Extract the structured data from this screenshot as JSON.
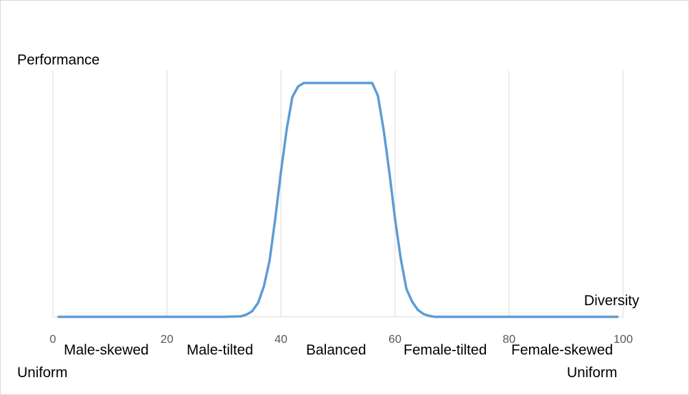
{
  "chart_data": {
    "type": "line",
    "ylabel": "Performance",
    "xlabel": "Diversity",
    "xlim": [
      0,
      100
    ],
    "ylim": [
      0,
      1
    ],
    "x_ticks": [
      "0",
      "20",
      "40",
      "60",
      "80",
      "100"
    ],
    "grid": "vertical",
    "category_labels": [
      "Male-skewed",
      "Male-tilted",
      "Balanced",
      "Female-tilted",
      "Female-skewed"
    ],
    "end_labels": [
      "Uniform",
      "Uniform"
    ],
    "series": [
      {
        "color": "#5b9bd5",
        "x": [
          1,
          10,
          20,
          30,
          33,
          34,
          35,
          36,
          37,
          38,
          39,
          40,
          41,
          42,
          43,
          44,
          45,
          50,
          55,
          56,
          57,
          58,
          59,
          60,
          61,
          62,
          63,
          64,
          65,
          66,
          67,
          70,
          80,
          90,
          99
        ],
        "y": [
          0,
          0,
          0,
          0,
          0.002,
          0.01,
          0.025,
          0.06,
          0.13,
          0.24,
          0.42,
          0.62,
          0.8,
          0.94,
          0.985,
          1,
          1,
          1,
          1,
          1,
          0.945,
          0.8,
          0.62,
          0.42,
          0.25,
          0.12,
          0.065,
          0.03,
          0.012,
          0.004,
          0,
          0,
          0,
          0,
          0
        ]
      }
    ]
  }
}
